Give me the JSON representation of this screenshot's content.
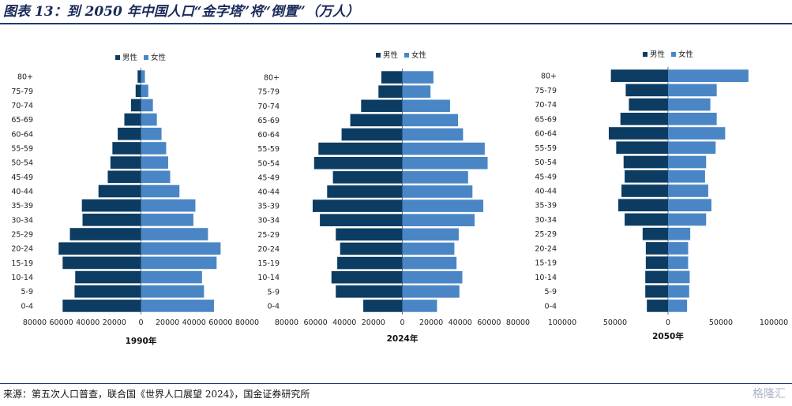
{
  "title": "图表 13：到 2050 年中国人口“金字塔”将“倒置”（万人）",
  "source": "来源：第五次人口普查，联合国《世界人口展望 2024》，国金证券研究所",
  "watermark": "格隆汇",
  "colors": {
    "male": "#0c3c61",
    "female": "#4a86c5",
    "rule": "#1f3b73"
  },
  "chart_data": [
    {
      "type": "bar",
      "orientation": "horizontal-pyramid",
      "xlabel": "1990年",
      "categories": [
        "0-4",
        "5-9",
        "10-14",
        "15-19",
        "20-24",
        "25-29",
        "30-34",
        "35-39",
        "40-44",
        "45-49",
        "50-54",
        "55-59",
        "60-64",
        "65-69",
        "70-74",
        "75-79",
        "80+"
      ],
      "series": [
        {
          "name": "男性",
          "values": [
            -59000,
            -50000,
            -49500,
            -59000,
            -62000,
            -53500,
            -44000,
            -44500,
            -32000,
            -25000,
            -23000,
            -21500,
            -17500,
            -12500,
            -7500,
            -4000,
            -2500
          ]
        },
        {
          "name": "女性",
          "values": [
            55000,
            47500,
            46000,
            57000,
            60000,
            50500,
            39500,
            41000,
            29000,
            22000,
            20500,
            19000,
            15500,
            12000,
            9000,
            5500,
            3000
          ]
        }
      ],
      "xlim": [
        -80000,
        80000
      ],
      "xticks": [
        -80000,
        -60000,
        -40000,
        -20000,
        0,
        20000,
        40000,
        60000,
        80000
      ],
      "xtick_labels": [
        "80000",
        "60000",
        "40000",
        "20000",
        "0",
        "20000",
        "40000",
        "60000",
        "80000"
      ],
      "legend": "top-center"
    },
    {
      "type": "bar",
      "orientation": "horizontal-pyramid",
      "xlabel": "2024年",
      "categories": [
        "0-4",
        "5-9",
        "10-14",
        "15-19",
        "20-24",
        "25-29",
        "30-34",
        "35-39",
        "40-44",
        "45-49",
        "50-54",
        "55-59",
        "60-64",
        "65-69",
        "70-74",
        "75-79",
        "80+"
      ],
      "series": [
        {
          "name": "男性",
          "values": [
            -27000,
            -46000,
            -49000,
            -45000,
            -43000,
            -46000,
            -57000,
            -62000,
            -52000,
            -48000,
            -61000,
            -58000,
            -42000,
            -36000,
            -28500,
            -16500,
            -14500
          ]
        },
        {
          "name": "女性",
          "values": [
            24000,
            39500,
            41500,
            37500,
            36000,
            39000,
            50000,
            56000,
            48500,
            45500,
            59000,
            57000,
            42000,
            38500,
            33000,
            19500,
            21500
          ]
        }
      ],
      "xlim": [
        -80000,
        80000
      ],
      "xticks": [
        -80000,
        -60000,
        -40000,
        -20000,
        0,
        20000,
        40000,
        60000,
        80000
      ],
      "xtick_labels": [
        "80000",
        "60000",
        "40000",
        "20000",
        "0",
        "20000",
        "40000",
        "60000",
        "80000"
      ],
      "legend": "top-center"
    },
    {
      "type": "bar",
      "orientation": "horizontal-pyramid",
      "xlabel": "2050年",
      "categories": [
        "0-4",
        "5-9",
        "10-14",
        "15-19",
        "20-24",
        "25-29",
        "30-34",
        "35-39",
        "40-44",
        "45-49",
        "50-54",
        "55-59",
        "60-64",
        "65-69",
        "70-74",
        "75-79",
        "80+"
      ],
      "series": [
        {
          "name": "男性",
          "values": [
            -20000,
            -21500,
            -21500,
            -21000,
            -21000,
            -24000,
            -41000,
            -47000,
            -44000,
            -41000,
            -42000,
            -49000,
            -56000,
            -45000,
            -37000,
            -40000,
            -54000
          ]
        },
        {
          "name": "女性",
          "values": [
            18000,
            20000,
            20500,
            19000,
            19000,
            21000,
            36000,
            41000,
            38000,
            35000,
            36000,
            45000,
            54000,
            46000,
            40000,
            46000,
            76000
          ]
        }
      ],
      "xlim": [
        -100000,
        100000
      ],
      "xticks": [
        -100000,
        -50000,
        0,
        50000,
        100000
      ],
      "xtick_labels": [
        "100000",
        "50000",
        "0",
        "50000",
        "100000"
      ],
      "legend": "top-center"
    }
  ]
}
